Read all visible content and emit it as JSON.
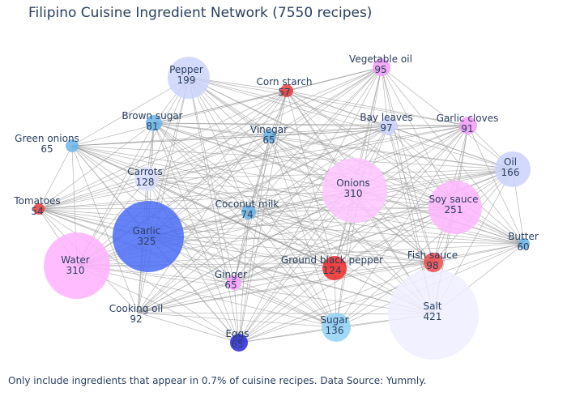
{
  "title": "Filipino Cuisine Ingredient Network (7550 recipes)",
  "caption": "Only include ingredients that appear in 0.7% of cuisine recipes. Data Source: Yummly.",
  "chart_data": {
    "type": "network",
    "edge_color": "#9e9e9e",
    "label_color": "#2a3f5f",
    "nodes": [
      {
        "name": "Salt",
        "count": 421,
        "color": "#eeeeff"
      },
      {
        "name": "Garlic",
        "count": 325,
        "color": "#4a6cf5"
      },
      {
        "name": "Onions",
        "count": 310,
        "color": "#ffc4ff"
      },
      {
        "name": "Water",
        "count": 310,
        "color": "#ffb1ff"
      },
      {
        "name": "Soy sauce",
        "count": 251,
        "color": "#ffb5ff"
      },
      {
        "name": "Pepper",
        "count": 199,
        "color": "#cdd4fb"
      },
      {
        "name": "Oil",
        "count": 166,
        "color": "#cbd2fb"
      },
      {
        "name": "Sugar",
        "count": 136,
        "color": "#8fd1f7"
      },
      {
        "name": "Carrots",
        "count": 128,
        "color": "#dcdffd"
      },
      {
        "name": "Ground black pepper",
        "count": 124,
        "color": "#f02828"
      },
      {
        "name": "Fish sauce",
        "count": 98,
        "color": "#f04848"
      },
      {
        "name": "Bay leaves",
        "count": 97,
        "color": "#cbd2fb"
      },
      {
        "name": "Vegetable oil",
        "count": 95,
        "color": "#f59af5"
      },
      {
        "name": "Cooking oil",
        "count": 92,
        "color": "#ffffff"
      },
      {
        "name": "Garlic cloves",
        "count": 91,
        "color": "#f59af5"
      },
      {
        "name": "Brown sugar",
        "count": 81,
        "color": "#6cb5e9"
      },
      {
        "name": "Coconut milk",
        "count": 74,
        "color": "#6cb5e9"
      },
      {
        "name": "Eggs",
        "count": 65,
        "color": "#2828d8"
      },
      {
        "name": "Green onions",
        "count": 65,
        "color": "#6cb5e9"
      },
      {
        "name": "Vinegar",
        "count": 65,
        "color": "#6cb5e9"
      },
      {
        "name": "Ginger",
        "count": 65,
        "color": "#ff9cff"
      },
      {
        "name": "Butter",
        "count": 60,
        "color": "#6cb5e9"
      },
      {
        "name": "Corn starch",
        "count": 57,
        "color": "#e63a3a"
      },
      {
        "name": "Tomatoes",
        "count": 54,
        "color": "#e63a3a"
      }
    ]
  }
}
